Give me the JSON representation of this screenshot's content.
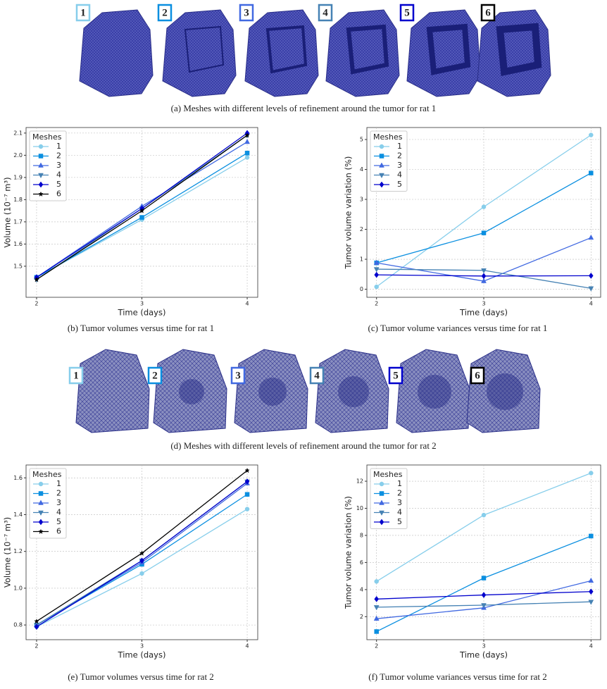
{
  "mesh_rows": [
    {
      "labels": [
        "1",
        "2",
        "3",
        "4",
        "5",
        "6"
      ],
      "colors": [
        "#87ceeb",
        "#0a8fe0",
        "#4169e1",
        "#4682b4",
        "#0000cd",
        "#000000"
      ],
      "caption": "(a) Meshes with different levels of refinement around the tumor for rat 1"
    },
    {
      "labels": [
        "1",
        "2",
        "3",
        "4",
        "5",
        "6"
      ],
      "colors": [
        "#87ceeb",
        "#0a8fe0",
        "#4169e1",
        "#4682b4",
        "#0000cd",
        "#000000"
      ],
      "caption": "(d) Meshes with different levels of refinement around the tumor for rat 2"
    }
  ],
  "chart_data": [
    {
      "type": "line",
      "caption": "(b) Tumor volumes versus time for rat 1",
      "xlabel": "Time (days)",
      "ylabel": "Volume (10⁻⁷ m³)",
      "x": [
        2,
        3,
        4
      ],
      "xlim": [
        1.9,
        4.1
      ],
      "xticks": [
        2,
        3,
        4
      ],
      "ylim": [
        1.36,
        2.125
      ],
      "yticks": [
        1.5,
        1.6,
        1.7,
        1.8,
        1.9,
        {
          "value": 2,
          "label": "2.0"
        },
        2.1
      ],
      "grid": true,
      "legend": "upper left",
      "legend_title": "Meshes",
      "series": [
        {
          "name": "1",
          "color": "#87ceeb",
          "marker": "circle",
          "values": [
            1.45,
            1.71,
            1.99
          ]
        },
        {
          "name": "2",
          "color": "#0a8fe0",
          "marker": "square",
          "values": [
            1.45,
            1.72,
            2.01
          ]
        },
        {
          "name": "3",
          "color": "#4169e1",
          "marker": "triangle-up",
          "values": [
            1.45,
            1.77,
            2.06
          ]
        },
        {
          "name": "4",
          "color": "#4682b4",
          "marker": "triangle-down",
          "values": [
            1.44,
            1.76,
            2.09
          ]
        },
        {
          "name": "5",
          "color": "#0000cd",
          "marker": "diamond",
          "values": [
            1.45,
            1.76,
            2.1
          ]
        },
        {
          "name": "6",
          "color": "#000000",
          "marker": "star",
          "values": [
            1.44,
            1.75,
            2.09
          ]
        }
      ]
    },
    {
      "type": "line",
      "caption": "(c) Tumor volume variances versus time for rat 1",
      "xlabel": "Time (days)",
      "ylabel": "Tumor volume variation (%)",
      "x": [
        2,
        3,
        4
      ],
      "xlim": [
        1.91,
        4.09
      ],
      "xticks": [
        2,
        3,
        4
      ],
      "ylim": [
        -0.27,
        5.4
      ],
      "yticks": [
        0,
        1,
        2,
        3,
        4,
        5
      ],
      "grid": true,
      "legend": "upper left",
      "legend_title": "Meshes",
      "series": [
        {
          "name": "1",
          "color": "#87ceeb",
          "marker": "circle",
          "values": [
            0.08,
            2.75,
            5.15
          ]
        },
        {
          "name": "2",
          "color": "#0a8fe0",
          "marker": "square",
          "values": [
            0.88,
            1.88,
            3.88
          ]
        },
        {
          "name": "3",
          "color": "#4169e1",
          "marker": "triangle-up",
          "values": [
            0.88,
            0.27,
            1.72
          ]
        },
        {
          "name": "4",
          "color": "#4682b4",
          "marker": "triangle-down",
          "values": [
            0.67,
            0.63,
            0.03
          ]
        },
        {
          "name": "5",
          "color": "#0000cd",
          "marker": "diamond",
          "values": [
            0.48,
            0.44,
            0.45
          ]
        }
      ]
    },
    {
      "type": "line",
      "caption": "(e) Tumor volumes versus time for rat 2",
      "xlabel": "Time (days)",
      "ylabel": "Volume (10⁻⁷ m³)",
      "x": [
        2,
        3,
        4
      ],
      "xlim": [
        1.9,
        4.1
      ],
      "xticks": [
        2,
        3,
        4
      ],
      "ylim": [
        0.72,
        1.67
      ],
      "yticks": [
        0.8,
        {
          "value": 1,
          "label": "1.0"
        },
        1.2,
        1.4,
        1.6
      ],
      "grid": true,
      "legend": "upper left",
      "legend_title": "Meshes",
      "series": [
        {
          "name": "1",
          "color": "#87ceeb",
          "marker": "circle",
          "values": [
            0.79,
            1.08,
            1.43
          ]
        },
        {
          "name": "2",
          "color": "#0a8fe0",
          "marker": "square",
          "values": [
            0.8,
            1.13,
            1.51
          ]
        },
        {
          "name": "3",
          "color": "#4169e1",
          "marker": "triangle-up",
          "values": [
            0.8,
            1.14,
            1.57
          ]
        },
        {
          "name": "4",
          "color": "#4682b4",
          "marker": "triangle-down",
          "values": [
            0.8,
            1.15,
            1.58
          ]
        },
        {
          "name": "5",
          "color": "#0000cd",
          "marker": "diamond",
          "values": [
            0.79,
            1.15,
            1.58
          ]
        },
        {
          "name": "6",
          "color": "#000000",
          "marker": "star",
          "values": [
            0.82,
            1.19,
            1.64
          ]
        }
      ]
    },
    {
      "type": "line",
      "caption": "(f) Tumor volume variances versus time for rat 2",
      "xlabel": "Time (days)",
      "ylabel": "Tumor volume variation (%)",
      "x": [
        2,
        3,
        4
      ],
      "xlim": [
        1.91,
        4.09
      ],
      "xticks": [
        2,
        3,
        4
      ],
      "ylim": [
        0.3,
        13.2
      ],
      "yticks": [
        2,
        4,
        6,
        8,
        10,
        12
      ],
      "grid": true,
      "legend": "upper left",
      "legend_title": "Meshes",
      "series": [
        {
          "name": "1",
          "color": "#87ceeb",
          "marker": "circle",
          "values": [
            4.6,
            9.5,
            12.6
          ]
        },
        {
          "name": "2",
          "color": "#0a8fe0",
          "marker": "square",
          "values": [
            0.9,
            4.85,
            7.95
          ]
        },
        {
          "name": "3",
          "color": "#4169e1",
          "marker": "triangle-up",
          "values": [
            1.85,
            2.65,
            4.65
          ]
        },
        {
          "name": "4",
          "color": "#4682b4",
          "marker": "triangle-down",
          "values": [
            2.7,
            2.85,
            3.1
          ]
        },
        {
          "name": "5",
          "color": "#0000cd",
          "marker": "diamond",
          "values": [
            3.3,
            3.6,
            3.85
          ]
        }
      ]
    }
  ]
}
